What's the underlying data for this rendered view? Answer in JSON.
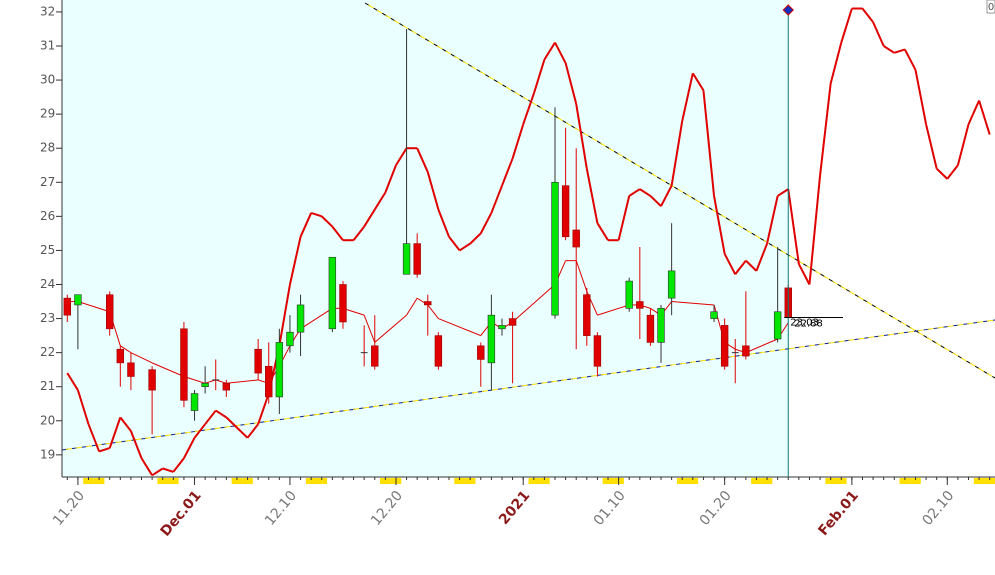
{
  "chart_data": {
    "type": "candlestick",
    "corner_label": "0",
    "categories": [
      null,
      "11.20",
      null,
      null,
      null,
      null,
      null,
      null,
      null,
      null,
      null,
      null,
      "Dec.01",
      null,
      null,
      null,
      null,
      null,
      null,
      null,
      null,
      "12.10",
      null,
      null,
      null,
      null,
      null,
      null,
      null,
      null,
      null,
      "12.20",
      null,
      null,
      null,
      null,
      null,
      null,
      null,
      null,
      null,
      null,
      null,
      "2021",
      null,
      null,
      null,
      null,
      null,
      null,
      null,
      null,
      "01.10",
      null,
      null,
      null,
      null,
      null,
      null,
      null,
      null,
      null,
      "01.20",
      null,
      null,
      null,
      null,
      null,
      null,
      null,
      null,
      null,
      null,
      null,
      "Feb.01",
      null,
      null,
      null,
      null,
      null,
      null,
      null,
      null,
      "02.10",
      null,
      null,
      null,
      null
    ],
    "ylim": [
      18.35,
      32.35
    ],
    "yticks": [
      19,
      20,
      21,
      22,
      23,
      24,
      25,
      26,
      27,
      28,
      29,
      30,
      31,
      32
    ],
    "up_color": "#00e600",
    "down_color": "#e00000",
    "open": [
      23.6,
      23.4,
      null,
      null,
      23.7,
      22.1,
      21.7,
      null,
      21.5,
      null,
      null,
      22.7,
      20.3,
      21.0,
      21.2,
      21.1,
      null,
      null,
      22.1,
      21.6,
      20.7,
      22.2,
      22.6,
      null,
      null,
      22.7,
      24.0,
      null,
      22.0,
      22.2,
      null,
      null,
      24.3,
      25.2,
      23.5,
      22.5,
      null,
      null,
      null,
      22.2,
      21.7,
      22.7,
      23.0,
      null,
      null,
      null,
      23.1,
      26.9,
      25.6,
      23.7,
      22.5,
      null,
      null,
      23.3,
      23.5,
      23.1,
      22.3,
      23.6,
      null,
      null,
      null,
      23.0,
      22.8,
      22.0,
      22.2,
      null,
      null,
      22.4,
      23.9,
      null,
      null,
      null,
      null,
      null,
      null,
      null,
      null,
      null,
      null,
      null,
      null,
      null,
      null,
      null,
      null,
      null,
      null,
      null
    ],
    "high": [
      23.7,
      23.7,
      null,
      null,
      23.8,
      22.2,
      22.0,
      null,
      21.6,
      null,
      null,
      22.9,
      20.9,
      21.6,
      21.8,
      21.2,
      null,
      null,
      22.4,
      22.3,
      22.7,
      23.1,
      23.7,
      null,
      null,
      24.8,
      24.1,
      null,
      22.8,
      23.1,
      null,
      null,
      31.5,
      25.5,
      23.7,
      22.6,
      null,
      null,
      null,
      22.3,
      23.7,
      23.0,
      23.2,
      null,
      null,
      null,
      29.2,
      28.6,
      28.0,
      23.9,
      22.6,
      null,
      null,
      24.2,
      25.1,
      23.3,
      23.4,
      25.8,
      null,
      null,
      null,
      23.4,
      23.0,
      22.4,
      23.8,
      null,
      null,
      25.1,
      24.0,
      null,
      null,
      null,
      null,
      null,
      null,
      null,
      null,
      null,
      null,
      null,
      null,
      null,
      null,
      null,
      null,
      null,
      null,
      null
    ],
    "low": [
      22.9,
      22.1,
      null,
      null,
      22.5,
      21.0,
      20.9,
      null,
      19.6,
      null,
      null,
      20.4,
      20.0,
      20.8,
      20.9,
      20.7,
      null,
      null,
      21.2,
      20.5,
      20.2,
      22.0,
      21.9,
      null,
      null,
      22.6,
      22.7,
      null,
      21.6,
      21.5,
      null,
      null,
      24.3,
      24.2,
      22.5,
      21.5,
      null,
      null,
      null,
      21.0,
      20.9,
      22.5,
      21.1,
      null,
      null,
      null,
      23.0,
      25.3,
      22.1,
      22.2,
      21.3,
      null,
      null,
      23.2,
      22.4,
      22.2,
      21.7,
      23.1,
      null,
      null,
      null,
      22.9,
      21.5,
      21.1,
      21.8,
      null,
      null,
      22.3,
      23.0,
      null,
      null,
      null,
      null,
      null,
      null,
      null,
      null,
      null,
      null,
      null,
      null,
      null,
      null,
      null,
      null,
      null,
      null,
      null
    ],
    "close": [
      23.1,
      23.7,
      null,
      null,
      22.7,
      21.7,
      21.3,
      null,
      20.9,
      null,
      null,
      20.6,
      20.8,
      21.1,
      21.2,
      20.9,
      null,
      null,
      21.4,
      20.7,
      22.3,
      22.6,
      23.4,
      null,
      null,
      24.8,
      22.9,
      null,
      22.0,
      21.6,
      null,
      null,
      25.2,
      24.3,
      23.4,
      21.6,
      null,
      null,
      null,
      21.8,
      23.1,
      22.8,
      22.8,
      null,
      null,
      null,
      27.0,
      25.4,
      25.1,
      22.5,
      21.6,
      null,
      null,
      24.1,
      23.3,
      22.3,
      23.3,
      24.4,
      null,
      null,
      null,
      23.2,
      21.6,
      22.0,
      21.9,
      null,
      null,
      23.2,
      23.03,
      null,
      null,
      null,
      null,
      null,
      null,
      null,
      null,
      null,
      null,
      null,
      null,
      null,
      null,
      null,
      null,
      null,
      null,
      null
    ],
    "series": [
      {
        "color": "#e00000",
        "values": [
          23.5,
          23.5,
          null,
          null,
          23.2,
          22.2,
          22.0,
          null,
          21.7,
          null,
          null,
          21.3,
          21.2,
          21.1,
          21.2,
          21.1,
          null,
          null,
          21.2,
          21.1,
          21.6,
          22.2,
          22.7,
          null,
          null,
          23.3,
          23.3,
          null,
          23.1,
          22.3,
          null,
          null,
          23.1,
          23.6,
          23.4,
          23.0,
          null,
          null,
          null,
          22.5,
          22.9,
          22.7,
          22.9,
          null,
          null,
          null,
          24.0,
          24.7,
          24.7,
          23.8,
          23.1,
          null,
          null,
          23.4,
          23.4,
          23.3,
          23.1,
          23.5,
          null,
          null,
          null,
          23.4,
          22.3,
          22.1,
          22.0,
          null,
          null,
          22.4,
          22.88,
          null,
          null,
          null,
          null,
          null,
          null,
          null,
          null,
          null,
          null,
          null,
          null,
          null,
          null,
          null,
          null,
          null,
          null,
          null
        ]
      },
      {
        "color": "#e00000",
        "values": [
          21.4,
          20.9,
          19.9,
          19.1,
          19.2,
          20.1,
          19.7,
          18.9,
          18.4,
          18.6,
          18.5,
          18.9,
          19.5,
          19.9,
          20.3,
          20.1,
          19.8,
          19.5,
          19.9,
          20.8,
          22.2,
          24.0,
          25.4,
          26.1,
          26.0,
          25.7,
          25.3,
          25.3,
          25.7,
          26.2,
          26.7,
          27.5,
          28.0,
          28.0,
          27.3,
          26.2,
          25.4,
          25.0,
          25.2,
          25.5,
          26.1,
          26.9,
          27.7,
          28.7,
          29.6,
          30.6,
          31.1,
          30.5,
          29.3,
          27.4,
          25.8,
          25.3,
          25.3,
          26.6,
          26.8,
          26.6,
          26.3,
          26.9,
          28.8,
          30.2,
          29.7,
          26.6,
          24.9,
          24.3,
          24.7,
          24.4,
          25.2,
          26.6,
          26.8,
          24.6,
          24.0,
          27.2,
          29.9,
          31.1,
          32.1,
          32.1,
          31.7,
          31.0,
          30.8,
          30.9,
          30.3,
          28.7,
          27.4,
          27.1,
          27.5,
          28.7,
          29.4,
          28.4
        ]
      }
    ]
  }
}
